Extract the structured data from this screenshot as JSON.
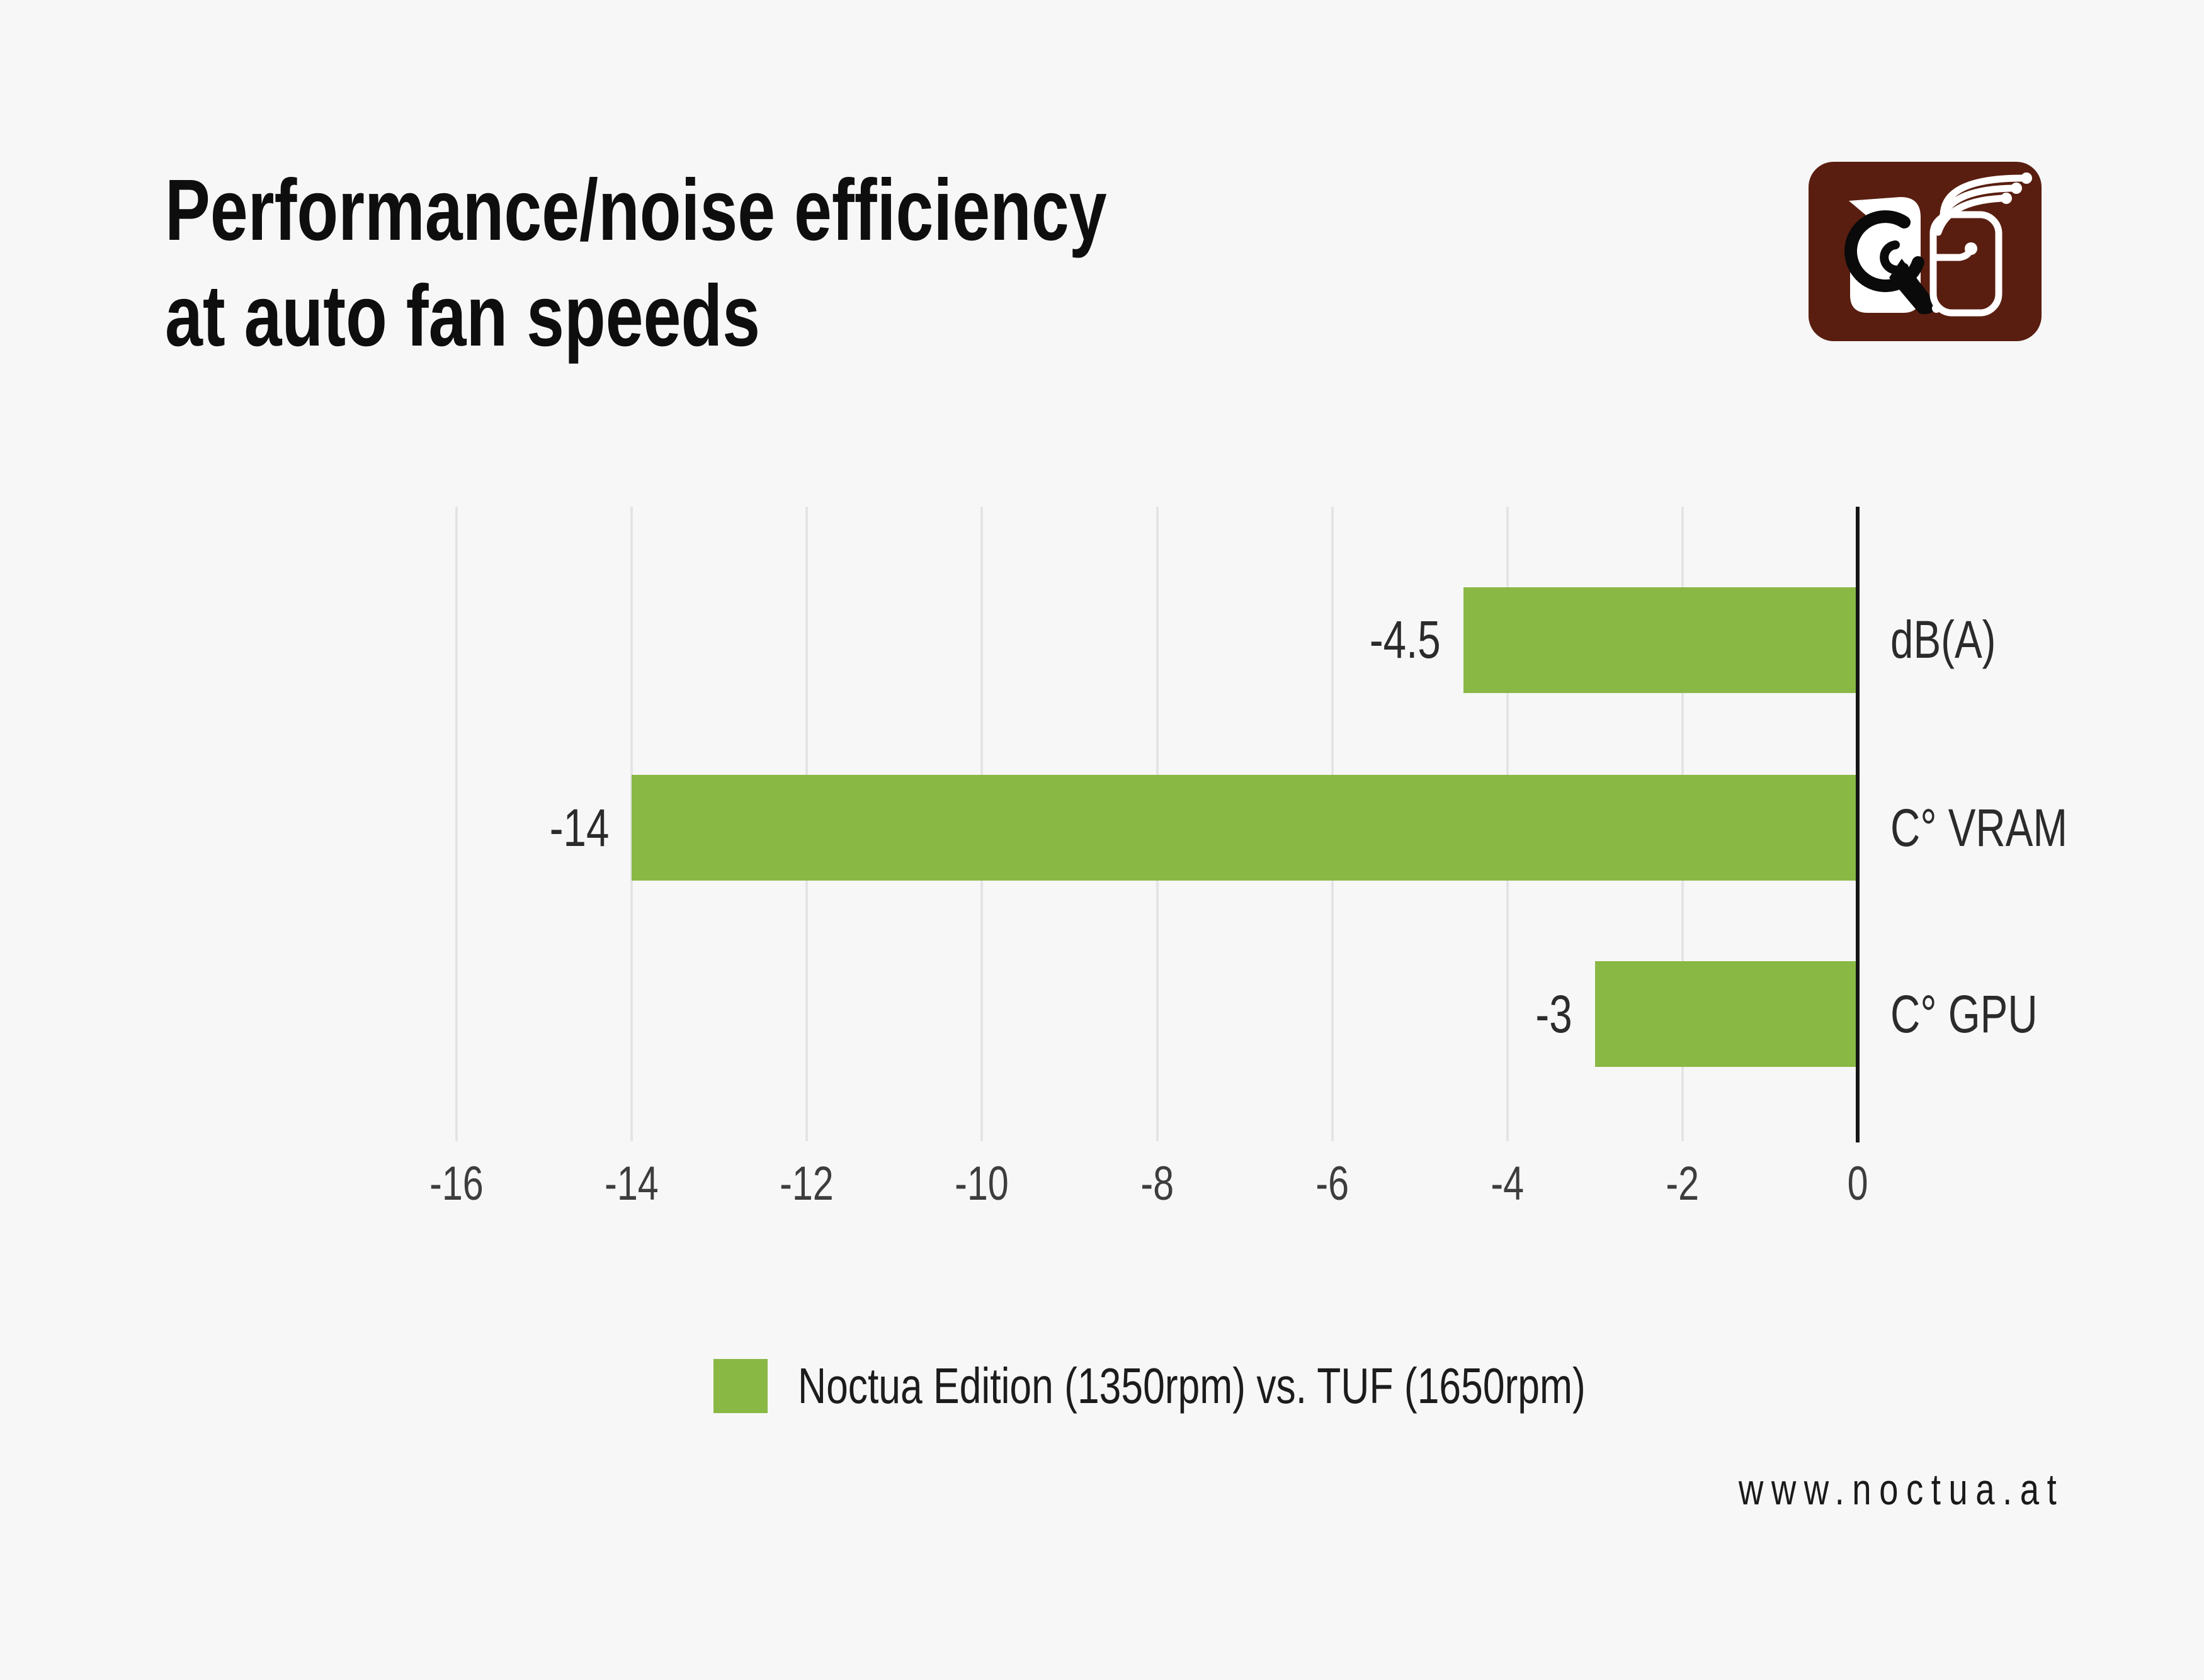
{
  "page": {
    "background_color": "#f7f7f7"
  },
  "header": {
    "title_line1": "Performance/noise efficiency",
    "title_line2": "at auto fan speeds"
  },
  "logo": {
    "label": "Noctua logo",
    "bg_color": "#591e10",
    "fg_color": "#ffffff"
  },
  "chart_data": {
    "type": "bar",
    "orientation": "horizontal",
    "title": "Performance/noise efficiency at auto fan speeds",
    "categories": [
      "dB(A)",
      "C° VRAM",
      "C° GPU"
    ],
    "values": [
      -4.5,
      -14,
      -3
    ],
    "value_labels": [
      "-4.5",
      "-14",
      "-3"
    ],
    "series_name": "Noctua Edition (1350rpm) vs. TUF (1650rpm)",
    "xlim": [
      -16,
      0
    ],
    "x_ticks": [
      -16,
      -14,
      -12,
      -10,
      -8,
      -6,
      -4,
      -2,
      0
    ],
    "grid": true,
    "legend_position": "bottom",
    "bar_color": "#8ab845",
    "grid_color": "#e4e4e4",
    "axis_color": "#161616"
  },
  "legend": {
    "swatch_color": "#8ab845",
    "label": "Noctua Edition (1350rpm) vs. TUF (1650rpm)"
  },
  "footer": {
    "website": "www.noctua.at"
  }
}
